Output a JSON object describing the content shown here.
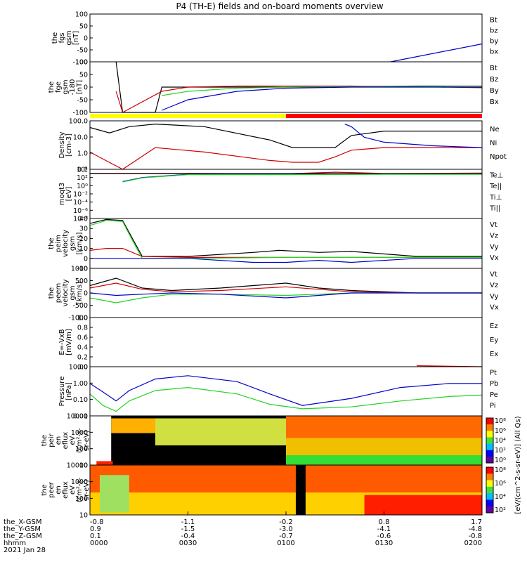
{
  "title": "P4 (TH-E) fields and on-board moments overview",
  "colors": {
    "black": "#000000",
    "red": "#d00000",
    "green": "#22d322",
    "blue": "#0000cc",
    "yellow": "#ffff00",
    "barred": "#ff0000"
  },
  "panels": [
    {
      "ylabel": [
        "the",
        "fgs",
        "gsm",
        "[nT]"
      ],
      "yticks": [
        "100",
        "50",
        "0",
        "-50",
        "-100"
      ],
      "legend": [
        {
          "text": "Bt",
          "color": "black"
        },
        {
          "text": "bz",
          "color": "red"
        },
        {
          "text": "by",
          "color": "green"
        },
        {
          "text": "bx",
          "color": "blue"
        }
      ]
    },
    {
      "ylabel": [
        "the",
        "fge",
        "gsm",
        "-180",
        "[nT]"
      ],
      "yticks": [
        "100",
        "50",
        "0",
        "-50",
        "-100"
      ],
      "legend": [
        {
          "text": "Bt",
          "color": "black"
        },
        {
          "text": "Bz",
          "color": "red"
        },
        {
          "text": "By",
          "color": "green"
        },
        {
          "text": "Bx",
          "color": "blue"
        }
      ]
    },
    {
      "ylabel": [
        "Density",
        "[cm-3]"
      ],
      "yticks": [
        "100.0",
        "10.0",
        "1.0",
        "0.1"
      ],
      "legend": [
        {
          "text": "Ne",
          "color": "red"
        },
        {
          "text": "Ni",
          "color": "black"
        },
        {
          "text": "Npot",
          "color": "blue"
        }
      ]
    },
    {
      "ylabel": [
        "moqt3",
        "[eV]"
      ],
      "yticks": [
        "10⁴",
        "10²",
        "10⁰",
        "10⁻²",
        "10⁻⁴",
        "10⁻⁶",
        "10⁻⁸"
      ],
      "legend": [
        {
          "text": "Te⊥",
          "color": "red"
        },
        {
          "text": "Te||",
          "color": "black"
        },
        {
          "text": "Ti⊥",
          "color": "blue"
        },
        {
          "text": "Ti||",
          "color": "green"
        }
      ]
    },
    {
      "ylabel": [
        "the",
        "peim",
        "velocity",
        "gsm",
        "[km/s]"
      ],
      "yticks": [
        "40",
        "30",
        "20",
        "10",
        "0",
        "-10"
      ],
      "legend": [
        {
          "text": "Vt",
          "color": "black"
        },
        {
          "text": "Vz",
          "color": "red"
        },
        {
          "text": "Vy",
          "color": "green"
        },
        {
          "text": "Vx",
          "color": "blue"
        }
      ]
    },
    {
      "ylabel": [
        "the",
        "peem",
        "velocity",
        "gsm",
        "[km/s]"
      ],
      "yticks": [
        "1000",
        "500",
        "0",
        "-500",
        "-1000"
      ],
      "legend": [
        {
          "text": "Vt",
          "color": "black"
        },
        {
          "text": "Vz",
          "color": "red"
        },
        {
          "text": "Vy",
          "color": "green"
        },
        {
          "text": "Vx",
          "color": "blue"
        }
      ]
    },
    {
      "ylabel": [
        "E=-VxB",
        "[mV/m]"
      ],
      "yticks": [
        "1.0",
        "0.8",
        "0.6",
        "0.4",
        "0.2",
        "0.0"
      ],
      "legend": [
        {
          "text": "Ez",
          "color": "red"
        },
        {
          "text": "Ey",
          "color": "green"
        },
        {
          "text": "Ex",
          "color": "blue"
        }
      ]
    },
    {
      "ylabel": [
        "Pressure",
        "[nPa]"
      ],
      "yticks": [
        "10.00",
        "1.00",
        "0.10",
        "0.01"
      ],
      "legend": [
        {
          "text": "Pt",
          "color": "black"
        },
        {
          "text": "Pb",
          "color": "red"
        },
        {
          "text": "Pe",
          "color": "green"
        },
        {
          "text": "Pi",
          "color": "blue"
        }
      ]
    },
    {
      "ylabel": [
        "the",
        "peir",
        "en",
        "eflux",
        "eV",
        "(cm²-s-",
        "sr-eV)"
      ],
      "yticks": [
        "10000",
        "1000",
        "100",
        "10"
      ],
      "colorbar": {
        "ticks": [
          "10⁸",
          "10⁶",
          "10⁴",
          "10²",
          "10⁰"
        ]
      }
    },
    {
      "ylabel": [
        "the",
        "peer",
        "en",
        "eflux",
        "eV",
        "(cm²-s-",
        "sr-eV)"
      ],
      "yticks": [
        "10000",
        "1000",
        "100",
        "10"
      ],
      "colorbar": {
        "ticks": [
          "10⁸",
          "10⁶",
          "10⁴",
          "10²"
        ]
      }
    }
  ],
  "colorbar_label": "[eV/(cm^2-s-sr-eV)] (All Qs)",
  "xaxis": {
    "row_labels": [
      "the_X-GSM",
      "the_Y-GSM",
      "the_Z-GSM",
      "hhmm",
      "2021 Jan 28"
    ],
    "columns": [
      [
        "-0.8",
        "0.9",
        "0.1",
        "0000"
      ],
      [
        "-1.1",
        "-1.5",
        "-0.4",
        "0030"
      ],
      [
        "-0.2",
        "-3.0",
        "-0.7",
        "0100"
      ],
      [
        "0.8",
        "-4.1",
        "-0.6",
        "0130"
      ],
      [
        "1.7",
        "-4.8",
        "-0.8",
        "0200"
      ]
    ]
  },
  "chart_data": {
    "type": "line",
    "title": "P4 (TH-E) fields and on-board moments overview",
    "x": {
      "unit": "hhmm",
      "ticks": [
        "0000",
        "0030",
        "0100",
        "0130",
        "0200"
      ],
      "range_minutes": [
        0,
        120
      ]
    },
    "series_panels": [
      {
        "panel": "the fgs gsm",
        "ylim": [
          -100,
          100
        ],
        "series": [
          {
            "name": "bx",
            "x": [
              0,
              30,
              60,
              92,
              120
            ],
            "values": [
              null,
              null,
              null,
              -100,
              -25
            ]
          },
          {
            "name": "by",
            "x": [
              0,
              120
            ],
            "values": [
              null,
              null
            ]
          }
        ]
      },
      {
        "panel": "the fge gsm",
        "ylim": [
          -120,
          120
        ],
        "series": [
          {
            "name": "Bt",
            "x": [
              8,
              10,
              20,
              22,
              40,
              60,
              80,
              100,
              120
            ],
            "values": [
              120,
              -120,
              -120,
              0,
              0,
              0,
              3,
              5,
              5
            ]
          },
          {
            "name": "Bz",
            "x": [
              8,
              10,
              22,
              30,
              45,
              60,
              80,
              100,
              120
            ],
            "values": [
              -20,
              -120,
              -20,
              0,
              5,
              5,
              5,
              2,
              -3
            ]
          },
          {
            "name": "By",
            "x": [
              22,
              30,
              45,
              60,
              80,
              100,
              120
            ],
            "values": [
              -40,
              -20,
              -5,
              0,
              2,
              3,
              5
            ]
          },
          {
            "name": "Bx",
            "x": [
              22,
              30,
              45,
              60,
              80,
              100,
              120
            ],
            "values": [
              -110,
              -60,
              -20,
              -5,
              0,
              0,
              0
            ]
          }
        ]
      },
      {
        "panel": "Density",
        "ylog": true,
        "ylim": [
          0.1,
          200
        ],
        "series": [
          {
            "name": "Ni",
            "x": [
              0,
              6,
              12,
              20,
              35,
              55,
              62,
              75,
              80,
              90,
              105,
              120
            ],
            "values": [
              70,
              30,
              80,
              120,
              80,
              10,
              3,
              3,
              20,
              40,
              40,
              40
            ]
          },
          {
            "name": "Ne",
            "x": [
              0,
              4,
              10,
              20,
              35,
              55,
              62,
              70,
              75,
              80,
              90,
              100,
              120
            ],
            "values": [
              1.5,
              0.5,
              0.1,
              3,
              1.5,
              0.4,
              0.3,
              0.3,
              0.7,
              2,
              3,
              3,
              3
            ]
          },
          {
            "name": "Npot",
            "x": [
              78,
              80,
              84,
              90,
              105,
              120
            ],
            "values": [
              120,
              80,
              15,
              7,
              4,
              3
            ]
          }
        ]
      },
      {
        "panel": "moqt3",
        "ylog": true,
        "ylim": [
          1e-08,
          10000.0
        ],
        "series": [
          {
            "name": "Te⊥",
            "x": [
              0,
              30,
              60,
              75,
              90,
              120
            ],
            "values": [
              1000,
              1000,
              800,
              2000,
              1000,
              1200
            ]
          },
          {
            "name": "Te||",
            "x": [
              0,
              30,
              60,
              90,
              120
            ],
            "values": [
              900,
              900,
              900,
              900,
              900
            ]
          },
          {
            "name": "Ti⊥",
            "x": [
              10,
              16,
              30,
              60,
              90,
              120
            ],
            "values": [
              10,
              100,
              600,
              600,
              700,
              700
            ]
          },
          {
            "name": "Ti||",
            "x": [
              10,
              16,
              30,
              60,
              90,
              120
            ],
            "values": [
              8,
              80,
              500,
              500,
              600,
              600
            ]
          }
        ]
      },
      {
        "panel": "the peim velocity gsm",
        "ylim": [
          -10,
          40
        ],
        "series": [
          {
            "name": "Vt",
            "x": [
              0,
              5,
              10,
              13,
              16,
              30,
              50,
              58,
              70,
              80,
              100,
              120
            ],
            "values": [
              35,
              39,
              38,
              20,
              2,
              2,
              6,
              8,
              6,
              7,
              2,
              2
            ]
          },
          {
            "name": "Vz",
            "x": [
              0,
              5,
              10,
              13,
              16,
              30,
              60,
              90,
              120
            ],
            "values": [
              8,
              10,
              10,
              6,
              2,
              1,
              1,
              1,
              1
            ]
          },
          {
            "name": "Vy",
            "x": [
              0,
              5,
              10,
              13,
              16,
              30,
              60,
              90,
              120
            ],
            "values": [
              33,
              38,
              37,
              18,
              0,
              0,
              1,
              1,
              1
            ]
          },
          {
            "name": "Vx",
            "x": [
              0,
              10,
              16,
              30,
              50,
              60,
              70,
              80,
              100,
              120
            ],
            "values": [
              0,
              0,
              0,
              0,
              -4,
              -4,
              -2,
              -4,
              0,
              0
            ]
          }
        ]
      },
      {
        "panel": "the peem velocity gsm",
        "ylim": [
          -1000,
          1000
        ],
        "series": [
          {
            "name": "Vt",
            "x": [
              0,
              8,
              16,
              25,
              40,
              60,
              70,
              80,
              100,
              120
            ],
            "values": [
              300,
              600,
              200,
              100,
              200,
              400,
              200,
              100,
              0,
              0
            ]
          },
          {
            "name": "Vz",
            "x": [
              0,
              8,
              16,
              25,
              40,
              60,
              70,
              80,
              100,
              120
            ],
            "values": [
              200,
              400,
              150,
              50,
              100,
              250,
              150,
              50,
              0,
              0
            ]
          },
          {
            "name": "Vy",
            "x": [
              0,
              8,
              16,
              25,
              40,
              60,
              70,
              80,
              100,
              120
            ],
            "values": [
              -200,
              -400,
              -200,
              -50,
              -50,
              -100,
              -50,
              0,
              0,
              0
            ]
          },
          {
            "name": "Vx",
            "x": [
              0,
              8,
              16,
              25,
              40,
              60,
              70,
              80,
              100,
              120
            ],
            "values": [
              0,
              -100,
              -50,
              0,
              -50,
              -200,
              -100,
              0,
              0,
              0
            ]
          }
        ]
      },
      {
        "panel": "E=-VxB",
        "ylim": [
          0,
          1
        ],
        "series": [
          {
            "name": "Ez",
            "x": [
              100,
              120
            ],
            "values": [
              0.02,
              -0.05
            ]
          }
        ]
      },
      {
        "panel": "Pressure",
        "ylog": true,
        "ylim": [
          0.01,
          20
        ],
        "series": [
          {
            "name": "Pi",
            "x": [
              0,
              4,
              8,
              12,
              20,
              30,
              45,
              55,
              65,
              80,
              95,
              110,
              120
            ],
            "values": [
              1.5,
              0.4,
              0.1,
              0.5,
              3,
              5,
              2,
              0.3,
              0.05,
              0.15,
              0.8,
              1.5,
              1.5
            ]
          },
          {
            "name": "Pe",
            "x": [
              0,
              4,
              8,
              12,
              20,
              30,
              45,
              55,
              65,
              80,
              95,
              110,
              120
            ],
            "values": [
              0.3,
              0.05,
              0.02,
              0.1,
              0.5,
              0.8,
              0.3,
              0.06,
              0.03,
              0.04,
              0.1,
              0.2,
              0.25
            ]
          },
          {
            "name": "Pt",
            "x": [
              100,
              120
            ],
            "values": [
              null,
              null
            ]
          }
        ]
      }
    ]
  }
}
